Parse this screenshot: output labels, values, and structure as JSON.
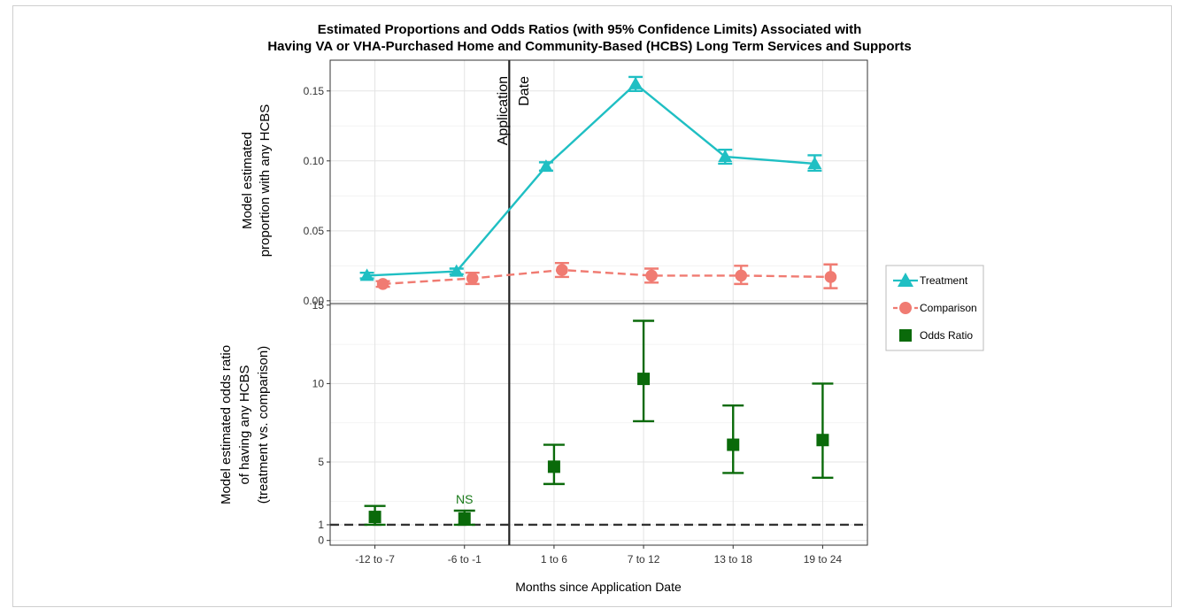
{
  "chart_data": {
    "type": "line",
    "title_line1": "Estimated Proportions and Odds Ratios (with 95% Confidence Limits) Associated with",
    "title_line2": "Having VA or VHA-Purchased Home and Community-Based (HCBS) Long Term Services and Supports",
    "xlabel": "Months since Application Date",
    "categories": [
      "-12 to -7",
      "-6 to -1",
      "1 to 6",
      "7 to 12",
      "13 to 18",
      "19 to 24"
    ],
    "annotation_vline": {
      "label_line1": "Application",
      "label_line2": "Date",
      "between": [
        "-6 to -1",
        "1 to 6"
      ]
    },
    "top_panel": {
      "ylabel_line1": "Model estimated",
      "ylabel_line2": "proportion with any HCBS",
      "ylim": [
        -0.002,
        0.172
      ],
      "yticks": [
        "0.00",
        "0.05",
        "0.10",
        "0.15"
      ],
      "series": [
        {
          "name": "Treatment",
          "color": "#1fbfc3",
          "marker": "triangle",
          "linestyle": "solid",
          "values": [
            0.018,
            0.021,
            0.096,
            0.155,
            0.103,
            0.098
          ],
          "lower": [
            0.016,
            0.019,
            0.093,
            0.15,
            0.098,
            0.093
          ],
          "upper": [
            0.02,
            0.023,
            0.099,
            0.16,
            0.108,
            0.104
          ]
        },
        {
          "name": "Comparison",
          "color": "#f07b72",
          "marker": "circle",
          "linestyle": "dashed",
          "values": [
            0.012,
            0.016,
            0.022,
            0.018,
            0.018,
            0.017
          ],
          "lower": [
            0.01,
            0.012,
            0.017,
            0.013,
            0.012,
            0.009
          ],
          "upper": [
            0.014,
            0.02,
            0.027,
            0.023,
            0.025,
            0.026
          ]
        }
      ]
    },
    "bottom_panel": {
      "ylabel_line1": "Model estimated odds ratio",
      "ylabel_line2": "of having any HCBS",
      "ylabel_line3": "(treatment vs. comparison)",
      "ylim": [
        -0.3,
        15.1
      ],
      "yticks": [
        "0",
        "1",
        "5",
        "10",
        "15"
      ],
      "reference_line": 1,
      "series": [
        {
          "name": "Odds Ratio",
          "color": "#0a6a0a",
          "marker": "square",
          "values": [
            1.5,
            1.4,
            4.7,
            10.3,
            6.1,
            6.4
          ],
          "lower": [
            1.0,
            1.0,
            3.6,
            7.6,
            4.3,
            4.0
          ],
          "upper": [
            2.2,
            1.9,
            6.1,
            14.0,
            8.6,
            10.0
          ]
        }
      ],
      "annotation": {
        "text": "NS",
        "category": "-6 to -1",
        "color": "#1a7a1a"
      }
    },
    "legend": {
      "placement": "right",
      "items": [
        {
          "label": "Treatment",
          "color": "#1fbfc3",
          "marker": "triangle"
        },
        {
          "label": "Comparison",
          "color": "#f07b72",
          "marker": "circle"
        },
        {
          "label": "Odds Ratio",
          "color": "#0a6a0a",
          "marker": "square"
        }
      ]
    },
    "grid": true
  }
}
